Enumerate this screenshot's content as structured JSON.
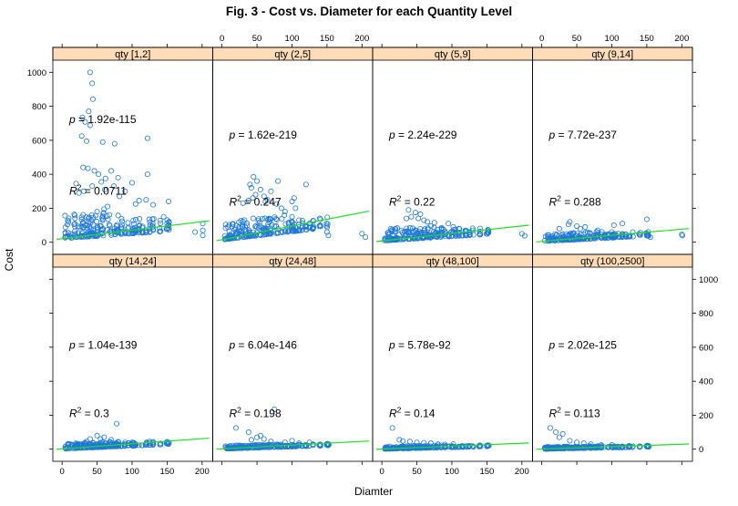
{
  "chart_data": {
    "type": "scatter",
    "title": "Fig. 3 - Cost vs. Diameter for each Quantity Level",
    "xlabel": "Diamter",
    "ylabel": "Cost",
    "xlim": [
      -8,
      210
    ],
    "ylim": [
      -50,
      1050
    ],
    "x_ticks": [
      0,
      50,
      100,
      150,
      200
    ],
    "y_ticks": [
      0,
      200,
      400,
      600,
      800,
      1000
    ],
    "point_color": "#1f78d8",
    "line_color": "#22dd22",
    "strip_color": "#ffdcb8",
    "panels": [
      {
        "label": "qty [1,2]",
        "p": "1.92e-115",
        "r2": "0.0711",
        "fit": [
          21,
          0.5
        ],
        "spread": 140,
        "points": [
          [
            40,
            1000
          ],
          [
            43,
            935
          ],
          [
            44,
            842
          ],
          [
            38,
            770
          ],
          [
            29,
            735
          ],
          [
            33,
            708
          ],
          [
            40,
            688
          ],
          [
            58,
            590
          ],
          [
            75,
            580
          ],
          [
            28,
            625
          ],
          [
            35,
            595
          ],
          [
            30,
            440
          ],
          [
            37,
            435
          ],
          [
            46,
            420
          ],
          [
            52,
            400
          ],
          [
            70,
            420
          ],
          [
            62,
            375
          ],
          [
            80,
            380
          ],
          [
            56,
            355
          ],
          [
            100,
            350
          ],
          [
            122,
            400
          ],
          [
            74,
            330
          ],
          [
            43,
            330
          ],
          [
            61,
            310
          ],
          [
            90,
            300
          ],
          [
            31,
            300
          ],
          [
            122,
            612
          ],
          [
            20,
            345
          ],
          [
            24,
            290
          ],
          [
            82,
            270
          ],
          [
            110,
            245
          ],
          [
            152,
            240
          ],
          [
            130,
            220
          ],
          [
            105,
            225
          ],
          [
            65,
            210
          ],
          [
            120,
            250
          ],
          [
            60,
            195
          ],
          [
            50,
            180
          ],
          [
            145,
            150
          ],
          [
            152,
            100
          ],
          [
            201,
            110
          ],
          [
            201,
            70
          ],
          [
            201,
            40
          ],
          [
            190,
            60
          ]
        ]
      },
      {
        "label": "qty (2,5]",
        "p": "1.62e-219",
        "r2": "0.247",
        "fit": [
          15,
          0.8
        ],
        "spread": 105,
        "points": [
          [
            45,
            385
          ],
          [
            50,
            360
          ],
          [
            40,
            340
          ],
          [
            42,
            320
          ],
          [
            55,
            310
          ],
          [
            80,
            360
          ],
          [
            70,
            300
          ],
          [
            60,
            270
          ],
          [
            48,
            280
          ],
          [
            103,
            260
          ],
          [
            100,
            240
          ],
          [
            120,
            340
          ],
          [
            105,
            200
          ],
          [
            125,
            110
          ],
          [
            100,
            150
          ],
          [
            150,
            60
          ],
          [
            152,
            40
          ],
          [
            200,
            50
          ],
          [
            205,
            30
          ],
          [
            30,
            230
          ],
          [
            38,
            245
          ],
          [
            78,
            225
          ],
          [
            65,
            250
          ],
          [
            90,
            180
          ],
          [
            85,
            200
          ],
          [
            110,
            130
          ],
          [
            62,
            240
          ],
          [
            44,
            260
          ]
        ]
      },
      {
        "label": "qty (5,9]",
        "p": "2.24e-229",
        "r2": "0.22",
        "fit": [
          8,
          0.44
        ],
        "spread": 70,
        "points": [
          [
            38,
            190
          ],
          [
            48,
            175
          ],
          [
            55,
            165
          ],
          [
            35,
            140
          ],
          [
            65,
            120
          ],
          [
            42,
            150
          ],
          [
            70,
            95
          ],
          [
            95,
            110
          ],
          [
            102,
            90
          ],
          [
            110,
            80
          ],
          [
            125,
            60
          ],
          [
            130,
            70
          ],
          [
            152,
            60
          ],
          [
            200,
            50
          ],
          [
            204,
            38
          ],
          [
            75,
            115
          ],
          [
            60,
            130
          ],
          [
            52,
            140
          ],
          [
            88,
            75
          ],
          [
            115,
            40
          ]
        ]
      },
      {
        "label": "qty (9,14]",
        "p": "7.72e-237",
        "r2": "0.288",
        "fit": [
          5,
          0.36
        ],
        "spread": 40,
        "points": [
          [
            25,
            80
          ],
          [
            38,
            105
          ],
          [
            50,
            95
          ],
          [
            62,
            90
          ],
          [
            80,
            70
          ],
          [
            100,
            60
          ],
          [
            103,
            100
          ],
          [
            115,
            110
          ],
          [
            150,
            135
          ],
          [
            200,
            45
          ],
          [
            201,
            40
          ],
          [
            40,
            120
          ],
          [
            55,
            80
          ],
          [
            90,
            45
          ],
          [
            130,
            60
          ],
          [
            155,
            30
          ]
        ]
      },
      {
        "label": "qty (14,24]",
        "p": "1.04e-139",
        "r2": "0.3",
        "fit": [
          2,
          0.3
        ],
        "spread": 30,
        "points": [
          [
            78,
            150
          ],
          [
            50,
            80
          ],
          [
            40,
            60
          ],
          [
            60,
            70
          ],
          [
            100,
            40
          ],
          [
            125,
            45
          ],
          [
            152,
            30
          ],
          [
            55,
            60
          ],
          [
            70,
            55
          ],
          [
            90,
            40
          ],
          [
            35,
            45
          ],
          [
            120,
            30
          ]
        ]
      },
      {
        "label": "qty (24,48]",
        "p": "6.04e-146",
        "r2": "0.198",
        "fit": [
          2,
          0.22
        ],
        "spread": 18,
        "points": [
          [
            75,
            235
          ],
          [
            20,
            125
          ],
          [
            38,
            100
          ],
          [
            50,
            70
          ],
          [
            60,
            60
          ],
          [
            100,
            50
          ],
          [
            125,
            40
          ],
          [
            152,
            30
          ],
          [
            42,
            55
          ],
          [
            70,
            45
          ],
          [
            110,
            35
          ],
          [
            90,
            40
          ],
          [
            55,
            80
          ]
        ]
      },
      {
        "label": "qty (48,100]",
        "p": "5.78e-92",
        "r2": "0.14",
        "fit": [
          1,
          0.17
        ],
        "spread": 14,
        "points": [
          [
            15,
            125
          ],
          [
            25,
            55
          ],
          [
            40,
            45
          ],
          [
            50,
            40
          ],
          [
            70,
            35
          ],
          [
            80,
            30
          ],
          [
            102,
            30
          ],
          [
            125,
            20
          ],
          [
            152,
            20
          ],
          [
            60,
            38
          ],
          [
            90,
            28
          ],
          [
            30,
            48
          ]
        ]
      },
      {
        "label": "qty (100,2500]",
        "p": "2.02e-125",
        "r2": "0.113",
        "fit": [
          1,
          0.14
        ],
        "spread": 12,
        "points": [
          [
            12,
            125
          ],
          [
            20,
            100
          ],
          [
            30,
            90
          ],
          [
            40,
            50
          ],
          [
            50,
            40
          ],
          [
            70,
            30
          ],
          [
            100,
            25
          ],
          [
            125,
            20
          ],
          [
            152,
            15
          ],
          [
            60,
            35
          ],
          [
            85,
            25
          ],
          [
            25,
            70
          ]
        ]
      }
    ]
  }
}
